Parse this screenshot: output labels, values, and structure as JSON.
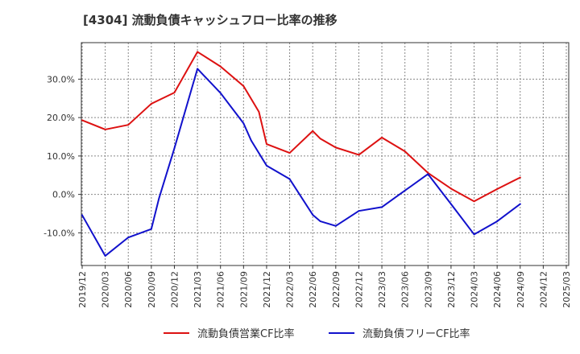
{
  "chart_data": {
    "type": "line",
    "title": "[4304]  流動負債キャッシュフロー比率の推移",
    "xlabel": "",
    "ylabel": "",
    "x_ticks": [
      "2019/12",
      "2020/03",
      "2020/06",
      "2020/09",
      "2020/12",
      "2021/03",
      "2021/06",
      "2021/09",
      "2021/12",
      "2022/03",
      "2022/06",
      "2022/09",
      "2022/12",
      "2023/03",
      "2023/06",
      "2023/09",
      "2023/12",
      "2024/03",
      "2024/06",
      "2024/09",
      "2024/12",
      "2025/03"
    ],
    "y_ticks": [
      "30.0%",
      "20.0%",
      "10.0%",
      "0.0%",
      "-10.0%"
    ],
    "y_tick_values": [
      30,
      20,
      10,
      0,
      -10
    ],
    "ylim": [
      -18.5,
      39.5
    ],
    "grid": true,
    "legend_position": "bottom",
    "series": [
      {
        "name": "流動負債営業CF比率",
        "color": "#dd1111",
        "points": [
          [
            "2019/12",
            19.3
          ],
          [
            "2020/03",
            16.9
          ],
          [
            "2020/06",
            18.1
          ],
          [
            "2020/09",
            23.6
          ],
          [
            "2020/12",
            26.5
          ],
          [
            "2021/03",
            37.1
          ],
          [
            "2021/06",
            33.3
          ],
          [
            "2021/09",
            28.2
          ],
          [
            "2021/11",
            21.5
          ],
          [
            "2021/12",
            13.1
          ],
          [
            "2022/03",
            10.8
          ],
          [
            "2022/06",
            16.5
          ],
          [
            "2022/07",
            14.5
          ],
          [
            "2022/09",
            12.2
          ],
          [
            "2022/12",
            10.3
          ],
          [
            "2023/03",
            14.8
          ],
          [
            "2023/06",
            11.2
          ],
          [
            "2023/09",
            5.6
          ],
          [
            "2023/12",
            1.5
          ],
          [
            "2024/03",
            -1.8
          ],
          [
            "2024/06",
            1.4
          ],
          [
            "2024/09",
            4.4
          ]
        ]
      },
      {
        "name": "流動負債フリーCF比率",
        "color": "#1111cc",
        "points": [
          [
            "2019/12",
            -5.4
          ],
          [
            "2020/03",
            -16.0
          ],
          [
            "2020/06",
            -11.2
          ],
          [
            "2020/09",
            -9.0
          ],
          [
            "2020/10",
            -1.0
          ],
          [
            "2020/12",
            12.0
          ],
          [
            "2021/03",
            32.7
          ],
          [
            "2021/06",
            26.4
          ],
          [
            "2021/09",
            18.5
          ],
          [
            "2021/10",
            14.0
          ],
          [
            "2021/12",
            7.5
          ],
          [
            "2022/03",
            4.0
          ],
          [
            "2022/06",
            -5.3
          ],
          [
            "2022/07",
            -7.0
          ],
          [
            "2022/09",
            -8.2
          ],
          [
            "2022/12",
            -4.3
          ],
          [
            "2023/03",
            -3.3
          ],
          [
            "2023/06",
            1.0
          ],
          [
            "2023/09",
            5.3
          ],
          [
            "2023/12",
            -2.5
          ],
          [
            "2024/03",
            -10.4
          ],
          [
            "2024/06",
            -7.0
          ],
          [
            "2024/09",
            -2.5
          ]
        ]
      }
    ]
  }
}
